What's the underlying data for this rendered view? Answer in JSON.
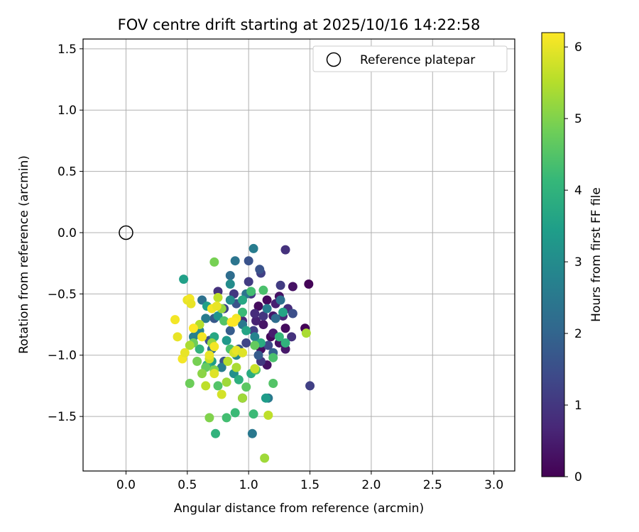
{
  "chart_data": {
    "type": "scatter",
    "title": "FOV centre drift starting at 2025/10/16 14:22:58",
    "xlabel": "Angular distance from reference (arcmin)",
    "ylabel": "Rotation from reference (arcmin)",
    "xlim": [
      -0.35,
      3.17
    ],
    "ylim": [
      -1.945,
      1.58
    ],
    "xticks": [
      0.0,
      0.5,
      1.0,
      1.5,
      2.0,
      2.5,
      3.0
    ],
    "xtick_labels": [
      "0.0",
      "0.5",
      "1.0",
      "1.5",
      "2.0",
      "2.5",
      "3.0"
    ],
    "yticks": [
      -1.5,
      -1.0,
      -0.5,
      0.0,
      0.5,
      1.0,
      1.5
    ],
    "ytick_labels": [
      "−1.5",
      "−1.0",
      "−0.5",
      "0.0",
      "0.5",
      "1.0",
      "1.5"
    ],
    "grid": true,
    "legend": {
      "position": "top-right",
      "entries": [
        "Reference platepar"
      ]
    },
    "reference_point": {
      "x": 0.0,
      "y": 0.0,
      "marker": "open-circle"
    },
    "colorbar": {
      "label": "Hours from first FF file",
      "range": [
        0,
        6.2
      ],
      "ticks": [
        0,
        1,
        2,
        3,
        4,
        5,
        6
      ],
      "tick_labels": [
        "0",
        "1",
        "2",
        "3",
        "4",
        "5",
        "6"
      ],
      "colormap": "viridis",
      "colors": [
        "#440154",
        "#482878",
        "#3e4989",
        "#31688e",
        "#26828e",
        "#1f9e89",
        "#35b779",
        "#6ece58",
        "#b5de2b",
        "#fde725"
      ]
    },
    "series": [
      {
        "name": "FOV centre drift",
        "points": [
          [
            1.49,
            -0.42,
            0.05
          ],
          [
            1.46,
            -0.78,
            0.05
          ],
          [
            1.36,
            -0.44,
            0.3
          ],
          [
            1.25,
            -0.52,
            0.3
          ],
          [
            1.3,
            -0.78,
            0.2
          ],
          [
            1.15,
            -0.55,
            0.15
          ],
          [
            1.12,
            -0.75,
            0.35
          ],
          [
            1.2,
            -0.68,
            0.4
          ],
          [
            1.08,
            -0.6,
            0.2
          ],
          [
            1.18,
            -0.85,
            0.15
          ],
          [
            1.25,
            -0.9,
            0.3
          ],
          [
            1.3,
            -0.95,
            0.4
          ],
          [
            1.1,
            -0.95,
            0.25
          ],
          [
            1.15,
            -1.08,
            0.3
          ],
          [
            1.2,
            -0.82,
            0.5
          ],
          [
            1.06,
            -0.72,
            0.6
          ],
          [
            1.28,
            -0.68,
            0.7
          ],
          [
            1.22,
            -0.58,
            0.55
          ],
          [
            1.32,
            -0.62,
            0.8
          ],
          [
            1.35,
            -0.85,
            0.9
          ],
          [
            1.3,
            -0.14,
            0.9
          ],
          [
            1.26,
            -0.43,
            1.1
          ],
          [
            1.5,
            -1.25,
            1.2
          ],
          [
            1.1,
            -0.33,
            1.2
          ],
          [
            1.36,
            -0.66,
            1.5
          ],
          [
            1.0,
            -0.4,
            1.1
          ],
          [
            1.02,
            -0.5,
            1.0
          ],
          [
            1.05,
            -0.66,
            0.8
          ],
          [
            0.95,
            -0.72,
            0.7
          ],
          [
            1.12,
            -0.68,
            1.0
          ],
          [
            0.98,
            -0.9,
            1.3
          ],
          [
            1.04,
            -0.8,
            1.2
          ],
          [
            1.16,
            -0.92,
            1.4
          ],
          [
            0.88,
            -0.5,
            1.0
          ],
          [
            0.75,
            -0.48,
            0.9
          ],
          [
            0.8,
            -0.62,
            1.3
          ],
          [
            1.1,
            -1.05,
            1.0
          ],
          [
            0.95,
            -1.35,
            0.2
          ],
          [
            1.0,
            -0.23,
            1.6
          ],
          [
            1.09,
            -0.3,
            1.6
          ],
          [
            0.9,
            -0.58,
            1.6
          ],
          [
            0.85,
            -0.8,
            1.8
          ],
          [
            0.92,
            -0.95,
            1.7
          ],
          [
            1.08,
            -1.0,
            1.8
          ],
          [
            0.72,
            -0.7,
            1.7
          ],
          [
            0.68,
            -0.88,
            1.5
          ],
          [
            0.8,
            -1.05,
            1.6
          ],
          [
            1.2,
            -0.98,
            1.9
          ],
          [
            1.26,
            -0.55,
            2.3
          ],
          [
            1.15,
            -0.62,
            2.6
          ],
          [
            1.22,
            -0.7,
            2.2
          ],
          [
            0.85,
            -0.35,
            2.2
          ],
          [
            0.89,
            -0.23,
            2.4
          ],
          [
            1.04,
            -0.13,
            2.6
          ],
          [
            1.03,
            -1.64,
            2.5
          ],
          [
            1.16,
            -1.35,
            2.5
          ],
          [
            0.62,
            -0.55,
            2.3
          ],
          [
            0.65,
            -0.7,
            2.6
          ],
          [
            0.7,
            -0.95,
            2.2
          ],
          [
            0.78,
            -1.1,
            2.6
          ],
          [
            0.6,
            -0.8,
            2.8
          ],
          [
            0.55,
            -0.85,
            2.7
          ],
          [
            0.98,
            -0.5,
            2.4
          ],
          [
            0.95,
            -0.75,
            2.5
          ],
          [
            1.05,
            -0.85,
            2.8
          ],
          [
            0.9,
            -1.0,
            2.9
          ],
          [
            0.85,
            -0.55,
            3.0
          ],
          [
            0.85,
            -0.42,
            3.0
          ],
          [
            0.75,
            -0.68,
            3.2
          ],
          [
            0.82,
            -0.88,
            3.3
          ],
          [
            0.88,
            -1.15,
            3.1
          ],
          [
            0.7,
            -1.05,
            3.4
          ],
          [
            0.66,
            -0.6,
            3.5
          ],
          [
            1.14,
            -1.35,
            3.4
          ],
          [
            1.28,
            -0.65,
            3.6
          ],
          [
            0.47,
            -0.38,
            3.5
          ],
          [
            0.95,
            -0.55,
            3.7
          ],
          [
            0.98,
            -0.8,
            3.6
          ],
          [
            1.1,
            -0.9,
            3.8
          ],
          [
            1.02,
            -1.15,
            3.8
          ],
          [
            0.92,
            -1.2,
            3.9
          ],
          [
            0.72,
            -0.85,
            3.7
          ],
          [
            0.66,
            -1.08,
            3.9
          ],
          [
            0.6,
            -0.95,
            4.0
          ],
          [
            1.25,
            -0.85,
            4.1
          ],
          [
            1.04,
            -1.48,
            4.2
          ],
          [
            0.89,
            -1.47,
            4.2
          ],
          [
            0.82,
            -1.51,
            4.3
          ],
          [
            0.73,
            -1.64,
            4.0
          ],
          [
            1.02,
            -0.48,
            4.3
          ],
          [
            1.12,
            -0.47,
            4.4
          ],
          [
            0.95,
            -0.65,
            4.2
          ],
          [
            1.3,
            -0.9,
            4.0
          ],
          [
            0.8,
            -0.72,
            4.5
          ],
          [
            0.85,
            -0.95,
            4.4
          ],
          [
            0.75,
            -1.25,
            4.5
          ],
          [
            0.98,
            -1.26,
            4.6
          ],
          [
            1.06,
            -1.12,
            4.5
          ],
          [
            0.65,
            -1.1,
            4.7
          ],
          [
            1.2,
            -1.23,
            4.5
          ],
          [
            1.2,
            -1.02,
            4.4
          ],
          [
            1.05,
            -0.92,
            4.7
          ],
          [
            0.55,
            -0.9,
            4.8
          ],
          [
            0.58,
            -1.05,
            4.9
          ],
          [
            0.72,
            -0.24,
            4.9
          ],
          [
            0.52,
            -1.23,
            4.8
          ],
          [
            0.68,
            -1.51,
            5.0
          ],
          [
            0.62,
            -1.15,
            5.1
          ],
          [
            0.78,
            -0.62,
            5.2
          ],
          [
            0.72,
            -1.12,
            5.0
          ],
          [
            0.82,
            -1.22,
            5.3
          ],
          [
            0.9,
            -1.1,
            5.4
          ],
          [
            0.95,
            -1.35,
            5.3
          ],
          [
            0.7,
            -0.9,
            5.2
          ],
          [
            0.6,
            -0.75,
            5.5
          ],
          [
            0.52,
            -0.92,
            5.4
          ],
          [
            1.47,
            -0.82,
            5.4
          ],
          [
            1.13,
            -1.84,
            5.3
          ],
          [
            1.16,
            -1.49,
            5.6
          ],
          [
            1.05,
            -1.11,
            5.7
          ],
          [
            0.75,
            -0.53,
            5.6
          ],
          [
            0.78,
            -1.32,
            5.8
          ],
          [
            0.88,
            -0.98,
            5.8
          ],
          [
            0.68,
            -1.03,
            5.7
          ],
          [
            0.65,
            -1.25,
            5.6
          ],
          [
            0.72,
            -1.15,
            5.9
          ],
          [
            0.83,
            -1.05,
            5.5
          ],
          [
            0.5,
            -0.55,
            6.0
          ],
          [
            0.52,
            -0.54,
            6.1
          ],
          [
            0.53,
            -0.58,
            6.0
          ],
          [
            0.4,
            -0.71,
            6.1
          ],
          [
            0.42,
            -0.85,
            6.0
          ],
          [
            0.46,
            -1.03,
            6.1
          ],
          [
            0.55,
            -0.78,
            6.2
          ],
          [
            0.48,
            -0.98,
            6.0
          ],
          [
            0.7,
            -0.62,
            6.1
          ],
          [
            0.74,
            -0.6,
            6.0
          ],
          [
            0.9,
            -0.7,
            6.1
          ],
          [
            0.88,
            -0.73,
            6.2
          ],
          [
            0.72,
            -0.93,
            6.1
          ],
          [
            0.9,
            -0.96,
            6.0
          ],
          [
            0.95,
            -0.98,
            5.9
          ],
          [
            0.62,
            -0.85,
            6.1
          ],
          [
            0.68,
            -1.0,
            6.0
          ],
          [
            0.86,
            -0.73,
            6.2
          ]
        ]
      }
    ]
  }
}
